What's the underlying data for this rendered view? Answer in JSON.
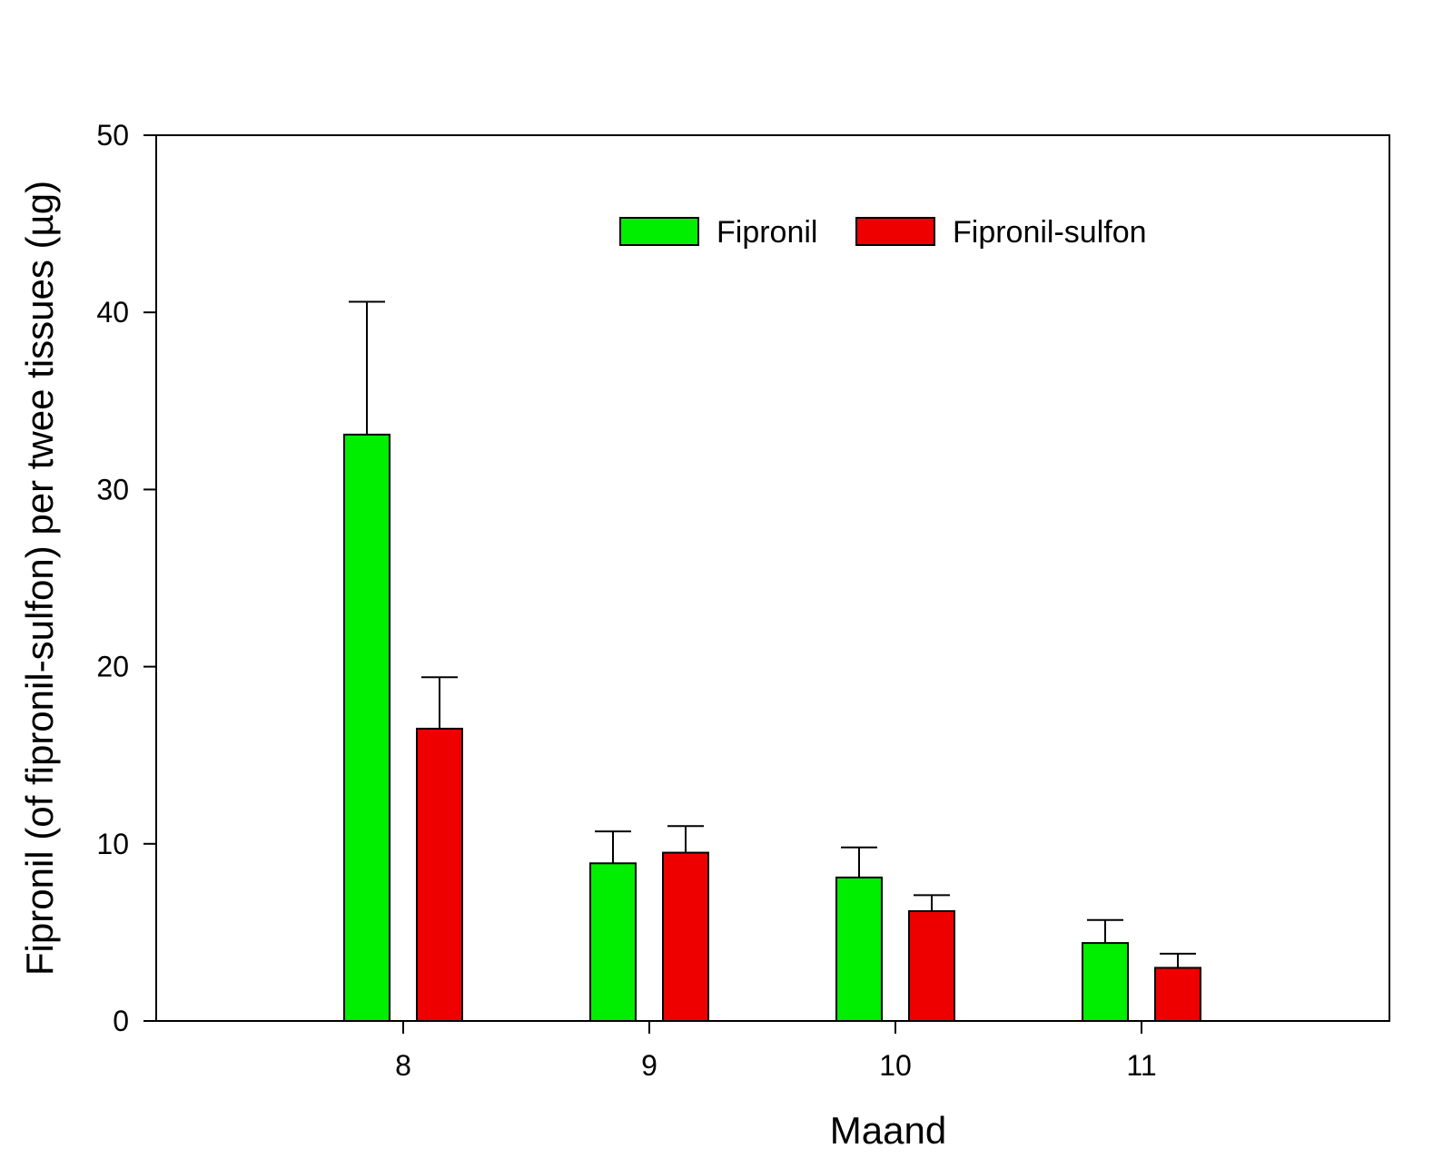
{
  "chart_data": {
    "type": "bar",
    "title": "",
    "xlabel": "Maand",
    "ylabel": "Fipronil (of fipronil-sulfon) per twee tissues (µg)",
    "categories": [
      "8",
      "9",
      "10",
      "11"
    ],
    "series": [
      {
        "name": "Fipronil",
        "color": "#00ee00",
        "values": [
          33.1,
          8.9,
          8.1,
          4.4
        ],
        "errors": [
          7.5,
          1.8,
          1.7,
          1.3
        ]
      },
      {
        "name": "Fipronil-sulfon",
        "color": "#ee0000",
        "values": [
          16.5,
          9.5,
          6.2,
          3.0
        ],
        "errors": [
          2.9,
          1.5,
          0.9,
          0.8
        ]
      }
    ],
    "ylim": [
      0,
      50
    ],
    "yticks": [
      "0",
      "10",
      "20",
      "30",
      "40",
      "50"
    ],
    "grid": false,
    "legend": "top"
  }
}
